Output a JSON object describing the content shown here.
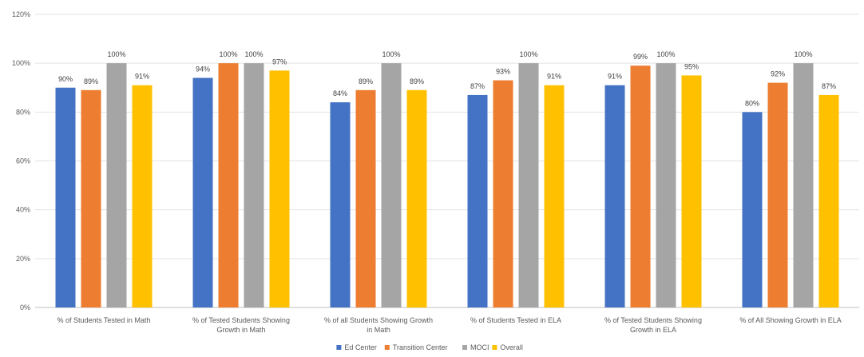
{
  "chart_data": {
    "type": "bar",
    "title": "",
    "xlabel": "",
    "ylabel": "",
    "ylim": [
      0,
      120
    ],
    "y_ticks": [
      "0%",
      "20%",
      "40%",
      "60%",
      "80%",
      "100%",
      "120%"
    ],
    "y_tick_values": [
      0,
      20,
      40,
      60,
      80,
      100,
      120
    ],
    "grid": true,
    "legend_position": "bottom",
    "categories": [
      [
        "% of Students Tested in Math"
      ],
      [
        "% of Tested Students Showing",
        "Growth in Math"
      ],
      [
        "% of all Students Showing Growth",
        "in Math"
      ],
      [
        "% of  Students Tested in ELA"
      ],
      [
        "% of Tested Students Showing",
        "Growth in ELA"
      ],
      [
        "% of All Showing Growth in ELA"
      ]
    ],
    "series": [
      {
        "name": "Ed Center",
        "color": "#4472C4",
        "values": [
          90,
          94,
          84,
          87,
          91,
          80
        ],
        "labels": [
          "90%",
          "94%",
          "84%",
          "87%",
          "91%",
          "80%"
        ]
      },
      {
        "name": "Transition Center",
        "color": "#ED7D31",
        "values": [
          89,
          100,
          89,
          93,
          99,
          92
        ],
        "labels": [
          "89%",
          "100%",
          "89%",
          "93%",
          "99%",
          "92%"
        ]
      },
      {
        "name": "MOCI",
        "color": "#A5A5A5",
        "values": [
          100,
          100,
          100,
          100,
          100,
          100
        ],
        "labels": [
          "100%",
          "100%",
          "100%",
          "100%",
          "100%",
          "100%"
        ]
      },
      {
        "name": "Overall",
        "color": "#FFC000",
        "values": [
          91,
          97,
          89,
          91,
          95,
          87
        ],
        "labels": [
          "91%",
          "97%",
          "89%",
          "91%",
          "95%",
          "87%"
        ]
      }
    ]
  }
}
